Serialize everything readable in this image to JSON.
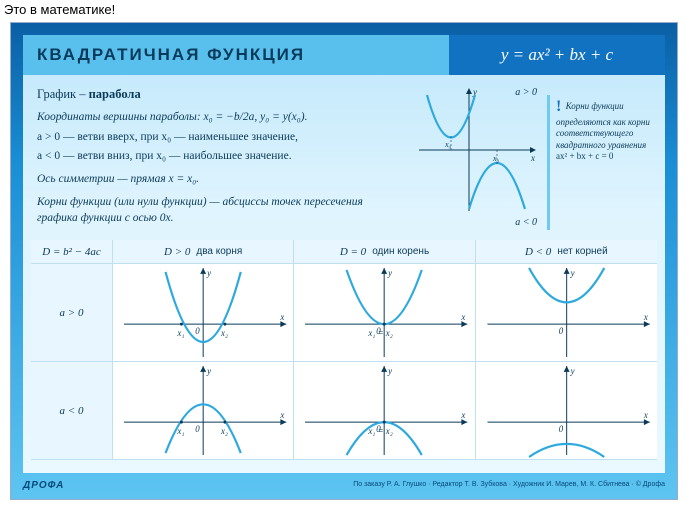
{
  "caption": "Это в математике!",
  "title": "КВАДРАТИЧНАЯ  ФУНКЦИЯ",
  "formula": "y = ax² + bx + c",
  "colors": {
    "poster_grad_top": "#0a5fa4",
    "poster_grad_bot": "#5ec5f1",
    "inner_top": "#bfe7fb",
    "inner_bot": "#eaf8ff",
    "titlebar_left": "#59c0ee",
    "titlebar_right": "#1272c2",
    "text": "#0a3a5a",
    "curve": "#2da9df",
    "axis": "#0a3a5a",
    "cell_bg": "#ffffff",
    "header_bg": "#e8f6ff",
    "gridline": "#bfe0f2"
  },
  "theory": {
    "header_prefix": "График – ",
    "header_bold": "парабола",
    "l1": "Координаты вершины параболы: x₀ = −b/2a, y₀ = y(x₀).",
    "l2": "a > 0 — ветви вверх, при x₀ — наименьшее значение,",
    "l3": "a < 0 — ветви вниз, при x₀ — наибольшее значение.",
    "l4": "Ось симметрии — прямая x = x₀.",
    "l5": "Корни функции (или нули функции) — абсциссы точек пересечения графика функции с осью 0x."
  },
  "theory_plot": {
    "a_pos": "a > 0",
    "a_neg": "a < 0",
    "x0": "x₀",
    "x": "x",
    "y": "y"
  },
  "roots_note": {
    "text": "Корни функции определяются как корни соответствующего квадратного уравнения",
    "eq": "ax² + bx + c = 0"
  },
  "table": {
    "corner": "D = b² − 4ac",
    "cols": [
      {
        "cond": "D > 0",
        "label": "два корня"
      },
      {
        "cond": "D = 0",
        "label": "один корень"
      },
      {
        "cond": "D < 0",
        "label": "нет корней"
      }
    ],
    "rows": [
      {
        "cond": "a > 0"
      },
      {
        "cond": "a < 0"
      }
    ],
    "cells": {
      "r0c0": {
        "orientation": "up",
        "roots": 2,
        "root_labels": [
          "x₁",
          "x₂"
        ]
      },
      "r0c1": {
        "orientation": "up",
        "roots": 1,
        "root_labels": [
          "x₁ = x₂"
        ]
      },
      "r0c2": {
        "orientation": "up",
        "roots": 0
      },
      "r1c0": {
        "orientation": "down",
        "roots": 2,
        "root_labels": [
          "x₁",
          "x₂"
        ]
      },
      "r1c1": {
        "orientation": "down",
        "roots": 1,
        "root_labels": [
          "x₁ = x₂"
        ]
      },
      "r1c2": {
        "orientation": "down",
        "roots": 0
      }
    },
    "axis_labels": {
      "x": "x",
      "y": "y",
      "o": "0"
    }
  },
  "footer": {
    "logo": "ДРОФА",
    "credits": "По заказу Р. А. Глушко · Редактор Т. В. Зубкова · Художник И. Марев, М. К. Сбитнева · © Дрофа"
  },
  "svg_style": {
    "axis_stroke": "#0a3a5a",
    "axis_width": 1,
    "curve_stroke": "#2da9df",
    "curve_width": 2.2,
    "label_font": "italic 9px Georgia",
    "label_fill": "#0a3a5a"
  }
}
